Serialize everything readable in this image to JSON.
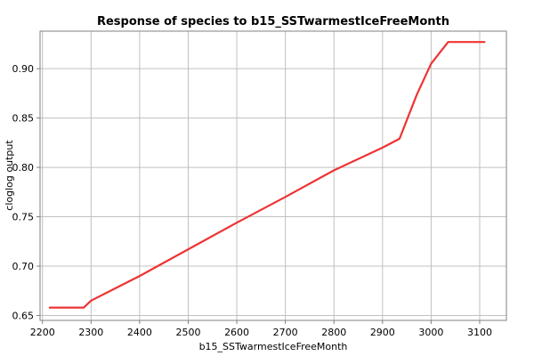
{
  "chart_data": {
    "type": "line",
    "title": "Response of species to b15_SSTwarmestIceFreeMonth",
    "xlabel": "b15_SSTwarmestIceFreeMonth",
    "ylabel": "cloglog output",
    "xlim": [
      2195,
      3155
    ],
    "ylim": [
      0.645,
      0.938
    ],
    "xticks": [
      2200,
      2300,
      2400,
      2500,
      2600,
      2700,
      2800,
      2900,
      3000,
      3100
    ],
    "yticks": [
      0.65,
      0.7,
      0.75,
      0.8,
      0.85,
      0.9
    ],
    "xtick_labels": [
      "2200",
      "2300",
      "2400",
      "2500",
      "2600",
      "2700",
      "2800",
      "2900",
      "3000",
      "3100"
    ],
    "ytick_labels": [
      "0.65",
      "0.70",
      "0.75",
      "0.80",
      "0.85",
      "0.90"
    ],
    "grid": true,
    "color": "#ee3333",
    "series": [
      {
        "x": [
          2215,
          2285,
          2300,
          2400,
          2500,
          2600,
          2700,
          2800,
          2900,
          2935,
          2970,
          3000,
          3035,
          3110
        ],
        "y": [
          0.658,
          0.658,
          0.665,
          0.69,
          0.717,
          0.744,
          0.77,
          0.797,
          0.82,
          0.829,
          0.873,
          0.905,
          0.927,
          0.927
        ]
      }
    ]
  }
}
